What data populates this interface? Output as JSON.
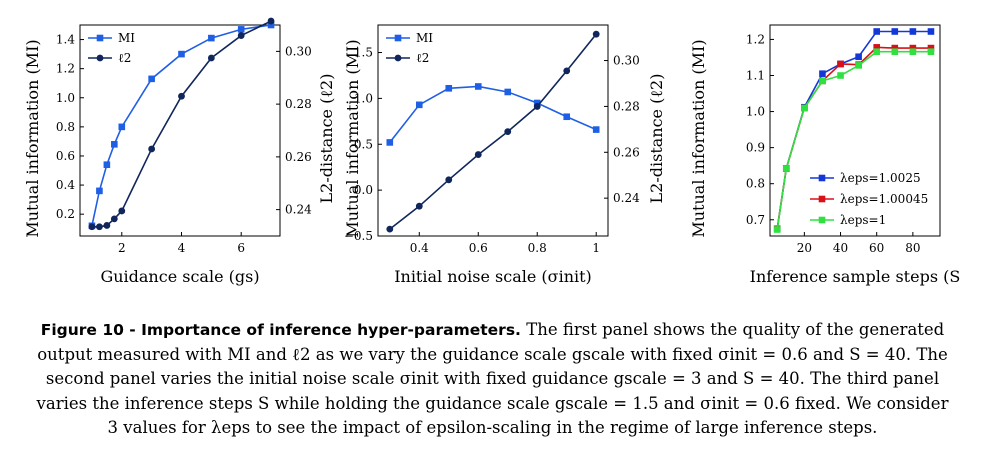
{
  "chart_data": [
    {
      "type": "line",
      "xlabel": "Guidance scale (gs)",
      "ylabel_left": "Mutual information (MI)",
      "ylabel_right": "L2-distance (ℓ2)",
      "xlim": [
        0.6,
        7.3
      ],
      "xticks": [
        2,
        4,
        6
      ],
      "ylim_left": [
        0.05,
        1.5
      ],
      "yticks_left": [
        0.2,
        0.4,
        0.6,
        0.8,
        1.0,
        1.2,
        1.4
      ],
      "ylim_right": [
        0.23,
        0.31
      ],
      "yticks_right": [
        0.24,
        0.26,
        0.28,
        0.3
      ],
      "legend_position": "upper-left",
      "series": [
        {
          "name": "MI",
          "axis": "left",
          "color": "#1f5fe6",
          "marker": "square",
          "x": [
            1.0,
            1.25,
            1.5,
            1.75,
            2.0,
            3.0,
            4.0,
            5.0,
            6.0,
            7.0
          ],
          "y": [
            0.12,
            0.36,
            0.54,
            0.68,
            0.8,
            1.13,
            1.3,
            1.41,
            1.47,
            1.5
          ]
        },
        {
          "name": "ℓ2",
          "axis": "right",
          "color": "#10265c",
          "marker": "circle",
          "x": [
            1.0,
            1.25,
            1.5,
            1.75,
            2.0,
            3.0,
            4.0,
            5.0,
            6.0,
            7.0
          ],
          "y": [
            0.2335,
            0.2335,
            0.234,
            0.2365,
            0.2395,
            0.263,
            0.283,
            0.2975,
            0.306,
            0.3115
          ]
        }
      ]
    },
    {
      "type": "line",
      "xlabel": "Initial noise scale (σinit)",
      "ylabel_left": "Mutual information (MI)",
      "ylabel_right": "L2-distance (ℓ2)",
      "xlim": [
        0.26,
        1.04
      ],
      "xticks": [
        0.4,
        0.6,
        0.8,
        1.0
      ],
      "ylim_left": [
        -0.5,
        1.8
      ],
      "yticks_left": [
        -0.5,
        0.0,
        0.5,
        1.0,
        1.5
      ],
      "ylim_right": [
        0.2235,
        0.3155
      ],
      "yticks_right": [
        0.24,
        0.26,
        0.28,
        0.3
      ],
      "legend_position": "upper-left",
      "series": [
        {
          "name": "MI",
          "axis": "left",
          "color": "#1f5fe6",
          "marker": "square",
          "x": [
            0.3,
            0.4,
            0.5,
            0.6,
            0.7,
            0.8,
            0.9,
            1.0
          ],
          "y": [
            0.52,
            0.93,
            1.11,
            1.13,
            1.07,
            0.95,
            0.8,
            0.66
          ]
        },
        {
          "name": "ℓ2",
          "axis": "right",
          "color": "#10265c",
          "marker": "circle",
          "x": [
            0.3,
            0.4,
            0.5,
            0.6,
            0.7,
            0.8,
            0.9,
            1.0
          ],
          "y": [
            0.2265,
            0.2365,
            0.248,
            0.259,
            0.269,
            0.28,
            0.2955,
            0.3115
          ]
        }
      ]
    },
    {
      "type": "line",
      "xlabel": "Inference sample steps (S",
      "ylabel_left": "Mutual information (MI)",
      "xlim": [
        1,
        95
      ],
      "xticks": [
        20,
        40,
        60,
        80
      ],
      "ylim_left": [
        0.655,
        1.24
      ],
      "yticks_left": [
        0.7,
        0.8,
        0.9,
        1.0,
        1.1,
        1.2
      ],
      "legend_position": "center-right",
      "series": [
        {
          "name": "λeps=1.0025",
          "axis": "left",
          "color": "#1438d8",
          "marker": "square",
          "x": [
            5,
            10,
            20,
            30,
            40,
            50,
            60,
            70,
            80,
            90
          ],
          "y": [
            0.675,
            0.842,
            1.012,
            1.105,
            1.132,
            1.152,
            1.222,
            1.222,
            1.222,
            1.222
          ]
        },
        {
          "name": "λeps=1.00045",
          "axis": "left",
          "color": "#d81018",
          "marker": "square",
          "x": [
            5,
            10,
            20,
            30,
            40,
            50,
            60,
            70,
            80,
            90
          ],
          "y": [
            0.675,
            0.842,
            1.01,
            1.085,
            1.132,
            1.13,
            1.178,
            1.176,
            1.176,
            1.176
          ]
        },
        {
          "name": "λeps=1",
          "axis": "left",
          "color": "#30e040",
          "marker": "square",
          "x": [
            5,
            10,
            20,
            30,
            40,
            50,
            60,
            70,
            80,
            90
          ],
          "y": [
            0.673,
            0.842,
            1.01,
            1.085,
            1.1,
            1.128,
            1.166,
            1.166,
            1.166,
            1.166
          ]
        }
      ]
    }
  ],
  "caption": {
    "label": "Figure 10",
    "separator": " - ",
    "title": "Importance of inference hyper-parameters.",
    "text": "The first panel shows the quality of the generated output measured with MI and ℓ2 as we vary the guidance scale gscale with fixed σinit = 0.6 and S = 40. The second panel varies the initial noise scale σinit with fixed guidance gscale = 3 and S = 40. The third panel varies the inference steps S while holding the guidance scale gscale = 1.5 and σinit = 0.6 fixed. We consider 3 values for λeps to see the impact of epsilon-scaling in the regime of large inference steps."
  }
}
